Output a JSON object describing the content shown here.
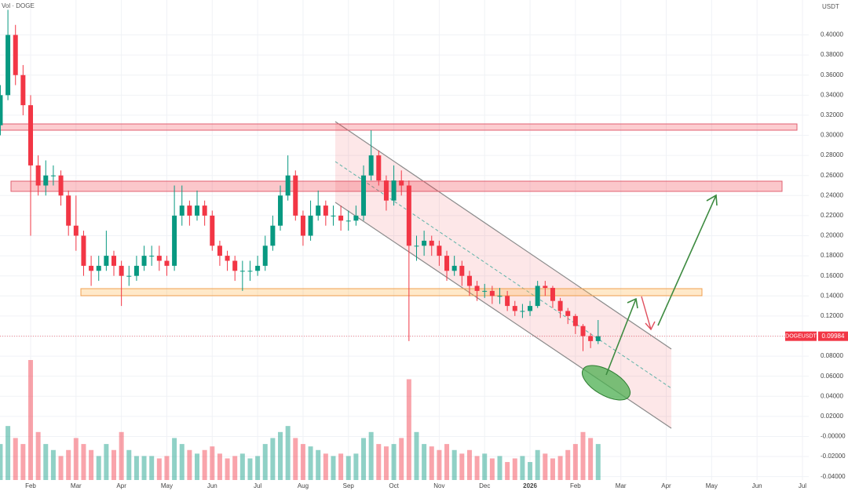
{
  "header": {
    "indicator": "Vol · DOGE",
    "currency": "USDT"
  },
  "chart_data": {
    "type": "candlestick",
    "symbol": "DOGEUSDT",
    "last_close_label": "0.09984",
    "up_color": "#089981",
    "down_color": "#f23645",
    "grid": true,
    "ylim": [
      -0.0434,
      0.4348
    ],
    "yticks": [
      {
        "value": 0.4,
        "label": "0.40000"
      },
      {
        "value": 0.38,
        "label": "0.38000"
      },
      {
        "value": 0.36,
        "label": "0.36000"
      },
      {
        "value": 0.34,
        "label": "0.34000"
      },
      {
        "value": 0.32,
        "label": "0.32000"
      },
      {
        "value": 0.3,
        "label": "0.30000"
      },
      {
        "value": 0.28,
        "label": "0.28000"
      },
      {
        "value": 0.26,
        "label": "0.26000"
      },
      {
        "value": 0.24,
        "label": "0.24000"
      },
      {
        "value": 0.22,
        "label": "0.22000"
      },
      {
        "value": 0.2,
        "label": "0.20000"
      },
      {
        "value": 0.18,
        "label": "0.18000"
      },
      {
        "value": 0.16,
        "label": "0.16000"
      },
      {
        "value": 0.14,
        "label": "0.14000"
      },
      {
        "value": 0.12,
        "label": "0.12000"
      },
      {
        "value": 0.1,
        "label": "0.10000"
      },
      {
        "value": 0.08,
        "label": "0.08000"
      },
      {
        "value": 0.06,
        "label": "0.06000"
      },
      {
        "value": 0.04,
        "label": "0.04000"
      },
      {
        "value": 0.02,
        "label": "0.02000"
      },
      {
        "value": 0,
        "label": "-0.00000"
      },
      {
        "value": -0.02,
        "label": "-0.02000"
      },
      {
        "value": -0.04,
        "label": "-0.04000"
      }
    ],
    "vlim": [
      0,
      100
    ],
    "categories": [
      null,
      null,
      null,
      null,
      "Feb",
      null,
      null,
      null,
      null,
      null,
      "Mar",
      null,
      null,
      null,
      null,
      null,
      "Apr",
      null,
      null,
      null,
      null,
      null,
      "May",
      null,
      null,
      null,
      null,
      null,
      "Jun",
      null,
      null,
      null,
      null,
      null,
      "Jul",
      null,
      null,
      null,
      null,
      null,
      "Aug",
      null,
      null,
      null,
      null,
      null,
      "Sep",
      null,
      null,
      null,
      null,
      null,
      "Oct",
      null,
      null,
      null,
      null,
      null,
      "Nov",
      null,
      null,
      null,
      null,
      null,
      "Dec",
      null,
      null,
      null,
      null,
      null,
      "2026",
      null,
      null,
      null,
      null,
      null,
      "Feb",
      null,
      null,
      null,
      null,
      null,
      "Mar",
      null,
      null,
      null,
      null,
      null,
      "Apr",
      null,
      null,
      null,
      null,
      null,
      "May",
      null,
      null,
      null,
      null,
      null,
      "Jun",
      null,
      null,
      null,
      null,
      null,
      "Jul"
    ],
    "open": [
      0.31,
      0.34,
      0.4,
      0.36,
      0.33,
      0.27,
      0.25,
      0.26,
      0.26,
      0.24,
      0.21,
      0.2,
      0.17,
      0.165,
      0.17,
      0.18,
      0.17,
      0.16,
      0.16,
      0.17,
      0.18,
      0.18,
      0.175,
      0.17,
      0.22,
      0.23,
      0.22,
      0.23,
      0.22,
      0.19,
      0.18,
      0.175,
      0.165,
      0.165,
      0.165,
      0.17,
      0.19,
      0.21,
      0.24,
      0.26,
      0.22,
      0.2,
      0.22,
      0.23,
      0.22,
      0.22,
      0.215,
      0.215,
      0.22,
      0.26,
      0.28,
      0.255,
      0.235,
      0.255,
      0.25,
      0.19,
      0.19,
      0.195,
      0.19,
      0.18,
      0.165,
      0.17,
      0.16,
      0.15,
      0.145,
      0.145,
      0.14,
      0.14,
      0.13,
      0.125,
      0.125,
      0.13,
      0.15,
      0.148,
      0.135,
      0.125,
      0.12,
      0.11,
      0.1,
      0.095,
      null,
      null,
      null,
      null,
      null,
      null,
      null,
      null,
      null,
      null,
      null,
      null,
      null,
      null,
      null,
      null,
      null,
      null,
      null,
      null,
      null,
      null,
      null,
      null,
      null,
      null,
      null
    ],
    "high": [
      0.35,
      0.425,
      0.41,
      0.37,
      0.34,
      0.28,
      0.275,
      0.27,
      0.265,
      0.245,
      0.24,
      0.205,
      0.18,
      0.18,
      0.205,
      0.185,
      0.175,
      0.17,
      0.18,
      0.19,
      0.19,
      0.19,
      0.18,
      0.25,
      0.25,
      0.235,
      0.245,
      0.235,
      0.225,
      0.195,
      0.185,
      0.18,
      0.175,
      0.175,
      0.18,
      0.2,
      0.22,
      0.25,
      0.28,
      0.265,
      0.225,
      0.235,
      0.245,
      0.235,
      0.23,
      0.23,
      0.225,
      0.23,
      0.27,
      0.305,
      0.285,
      0.26,
      0.27,
      0.265,
      0.255,
      0.2,
      0.205,
      0.2,
      0.195,
      0.185,
      0.18,
      0.175,
      0.165,
      0.155,
      0.152,
      0.15,
      0.148,
      0.145,
      0.135,
      0.132,
      0.135,
      0.155,
      0.155,
      0.15,
      0.138,
      0.128,
      0.122,
      0.112,
      0.103,
      0.116,
      null,
      null,
      null,
      null,
      null,
      null,
      null,
      null,
      null,
      null,
      null,
      null,
      null,
      null,
      null,
      null,
      null,
      null,
      null,
      null,
      null,
      null,
      null,
      null,
      null,
      null,
      null
    ],
    "low": [
      0.3,
      0.335,
      0.35,
      0.32,
      0.2,
      0.24,
      0.24,
      0.25,
      0.23,
      0.2,
      0.185,
      0.16,
      0.15,
      0.155,
      0.165,
      0.16,
      0.13,
      0.15,
      0.155,
      0.165,
      0.17,
      0.165,
      0.16,
      0.165,
      0.21,
      0.21,
      0.215,
      0.21,
      0.185,
      0.17,
      0.165,
      0.155,
      0.145,
      0.155,
      0.16,
      0.165,
      0.185,
      0.205,
      0.235,
      0.215,
      0.19,
      0.195,
      0.215,
      0.21,
      0.21,
      0.205,
      0.205,
      0.21,
      0.215,
      0.255,
      0.25,
      0.225,
      0.23,
      0.24,
      0.095,
      0.175,
      0.18,
      0.18,
      0.17,
      0.155,
      0.16,
      0.15,
      0.14,
      0.135,
      0.138,
      0.132,
      0.132,
      0.125,
      0.12,
      0.118,
      0.12,
      0.128,
      0.14,
      0.128,
      0.118,
      0.112,
      0.102,
      0.085,
      0.088,
      0.092,
      null,
      null,
      null,
      null,
      null,
      null,
      null,
      null,
      null,
      null,
      null,
      null,
      null,
      null,
      null,
      null,
      null,
      null,
      null,
      null,
      null,
      null,
      null,
      null,
      null,
      null,
      null
    ],
    "close": [
      0.34,
      0.4,
      0.36,
      0.33,
      0.27,
      0.25,
      0.26,
      0.26,
      0.24,
      0.21,
      0.2,
      0.17,
      0.165,
      0.17,
      0.18,
      0.17,
      0.16,
      0.16,
      0.17,
      0.18,
      0.18,
      0.175,
      0.17,
      0.22,
      0.23,
      0.22,
      0.23,
      0.22,
      0.19,
      0.18,
      0.175,
      0.165,
      0.165,
      0.165,
      0.17,
      0.19,
      0.21,
      0.24,
      0.26,
      0.22,
      0.2,
      0.22,
      0.23,
      0.22,
      0.22,
      0.215,
      0.215,
      0.22,
      0.26,
      0.28,
      0.255,
      0.235,
      0.255,
      0.25,
      0.19,
      0.19,
      0.195,
      0.19,
      0.18,
      0.165,
      0.17,
      0.16,
      0.15,
      0.145,
      0.145,
      0.14,
      0.14,
      0.13,
      0.125,
      0.125,
      0.13,
      0.15,
      0.148,
      0.135,
      0.125,
      0.12,
      0.11,
      0.1,
      0.095,
      0.09984,
      null,
      null,
      null,
      null,
      null,
      null,
      null,
      null,
      null,
      null,
      null,
      null,
      null,
      null,
      null,
      null,
      null,
      null,
      null,
      null,
      null,
      null,
      null,
      null,
      null,
      null,
      null
    ],
    "volume": [
      30,
      45,
      35,
      30,
      100,
      40,
      30,
      25,
      20,
      25,
      35,
      30,
      25,
      20,
      30,
      25,
      40,
      25,
      20,
      20,
      20,
      18,
      20,
      35,
      30,
      25,
      22,
      25,
      28,
      22,
      18,
      20,
      22,
      18,
      20,
      30,
      35,
      40,
      45,
      35,
      30,
      28,
      25,
      22,
      20,
      22,
      20,
      22,
      35,
      40,
      30,
      28,
      30,
      35,
      84,
      40,
      30,
      28,
      25,
      30,
      25,
      22,
      25,
      20,
      22,
      18,
      20,
      15,
      18,
      20,
      15,
      25,
      22,
      18,
      20,
      25,
      30,
      40,
      35,
      30,
      null,
      null,
      null,
      null,
      null,
      null,
      null,
      null,
      null,
      null,
      null,
      null,
      null,
      null,
      null,
      null,
      null,
      null,
      null,
      null,
      null,
      null,
      null,
      null,
      null,
      null,
      null
    ]
  }
}
